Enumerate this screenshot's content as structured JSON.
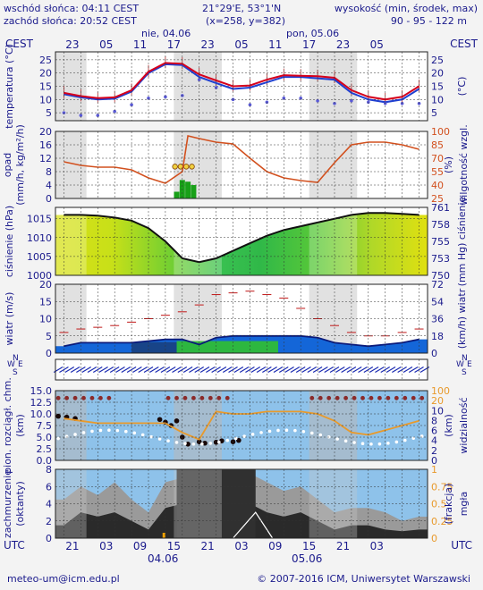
{
  "header": {
    "sunrise": "wschód słońca: 04:11 CEST",
    "sunset": "zachód słońca: 20:52 CEST",
    "coords": "21°29'E, 53°1'N",
    "grid": "(x=258, y=382)",
    "altitude_title": "wysokość (min, środek, max)",
    "altitude_values": "90 - 95 - 122 m"
  },
  "time_axis": {
    "tz_label": "CEST",
    "utc_label": "UTC",
    "top_date_1": "nie, 04.06",
    "top_date_2": "pon, 05.06",
    "top_hours": [
      "23",
      "05",
      "11",
      "17",
      "23",
      "05",
      "11",
      "17",
      "23",
      "05"
    ],
    "bottom_hours": [
      "21",
      "03",
      "09",
      "15",
      "21",
      "03",
      "09",
      "15",
      "21",
      "03"
    ],
    "bottom_date_1": "04.06",
    "bottom_date_2": "05.06"
  },
  "footer": {
    "email": "meteo-um@icm.edu.pl",
    "copyright": "© 2007-2016 ICM, Uniwersytet Warszawski"
  },
  "colors": {
    "panel_bg": "#ffffff",
    "night_band": "#dcdcdc",
    "axis_text": "#1a1a8c",
    "temp_line": "#d6001c",
    "temp_min_line": "#1f3fd0",
    "dew_point": "#5a5ad8",
    "precip_bar": "#18a018",
    "humidity": "#d2501e",
    "pressure_line": "#111111",
    "wind_speed_fill": "#1466d8",
    "wind_gust": "#c01818",
    "visibility": "#e89a2c",
    "cloud_fill": "#2a2a2a",
    "fog_line": "#ffffff"
  },
  "chart_data": [
    {
      "type": "line",
      "name": "temperature",
      "ylabel_left": "temperatura (°C)",
      "ylabel_right": "(°C)",
      "ylim": [
        2,
        28
      ],
      "ticks": [
        5,
        10,
        15,
        20,
        25
      ],
      "x_hours": [
        0,
        3,
        6,
        9,
        12,
        15,
        18,
        21,
        24,
        27,
        30,
        33,
        36,
        39,
        42,
        45,
        48,
        51,
        54,
        57,
        60,
        63
      ],
      "series": [
        {
          "name": "temperature",
          "values": [
            12.5,
            11.3,
            10.5,
            10.8,
            13.5,
            20.5,
            23.8,
            23.5,
            19.5,
            17.2,
            15.0,
            15.3,
            17.5,
            19.2,
            19.0,
            18.8,
            18.2,
            13.5,
            11.0,
            10.0,
            11.0,
            15.0
          ]
        },
        {
          "name": "temperature_min",
          "values": [
            12.0,
            10.8,
            10.0,
            10.3,
            13.0,
            20.0,
            23.3,
            23.0,
            18.5,
            16.2,
            14.0,
            14.5,
            16.5,
            18.5,
            18.5,
            18.0,
            17.5,
            12.5,
            10.0,
            9.0,
            10.0,
            14.0
          ]
        },
        {
          "name": "dew_point",
          "values": [
            5.0,
            4.0,
            4.0,
            5.5,
            8.0,
            10.5,
            11.0,
            11.5,
            17.5,
            14.5,
            10.0,
            8.0,
            9.0,
            10.5,
            10.5,
            9.5,
            8.5,
            9.5,
            9.0,
            8.5,
            8.5,
            8.5
          ]
        }
      ]
    },
    {
      "type": "bar",
      "name": "precipitation_humidity",
      "ylabel_left": "opad (mm/h, kg/m²/h)",
      "ylabel_right": "(%) wilgotność wzgl.",
      "ylim_left": [
        0,
        20
      ],
      "ticks_left": [
        0,
        4,
        8,
        12,
        16,
        20
      ],
      "ticks_right": [
        25,
        40,
        55,
        70,
        85,
        100
      ],
      "precip_hours": [
        20,
        21,
        22,
        23
      ],
      "precip_values": [
        2.0,
        5.5,
        5.0,
        4.0
      ],
      "humidity_hours": [
        0,
        3,
        6,
        9,
        12,
        15,
        18,
        21,
        22,
        24,
        27,
        30,
        33,
        36,
        39,
        42,
        45,
        48,
        51,
        54,
        57,
        60,
        63
      ],
      "humidity_values": [
        66,
        62,
        60,
        60,
        57,
        48,
        42,
        55,
        95,
        92,
        88,
        86,
        70,
        55,
        48,
        45,
        43,
        65,
        85,
        88,
        88,
        85,
        80
      ]
    },
    {
      "type": "area",
      "name": "pressure",
      "ylabel_left": "ciśnienie (hPa)",
      "ylabel_right": "(mm Hg) ciśnienie",
      "ylim": [
        1000,
        1018
      ],
      "ticks_left": [
        1000,
        1005,
        1010,
        1015
      ],
      "ticks_right": [
        750,
        753,
        755,
        758,
        761
      ],
      "x_hours": [
        0,
        3,
        6,
        9,
        12,
        15,
        18,
        21,
        24,
        27,
        30,
        33,
        36,
        39,
        42,
        45,
        48,
        51,
        54,
        57,
        60,
        63
      ],
      "values": [
        1016.0,
        1016.0,
        1015.8,
        1015.3,
        1014.5,
        1012.5,
        1009.0,
        1004.5,
        1003.5,
        1004.5,
        1006.5,
        1008.5,
        1010.5,
        1012.0,
        1013.0,
        1014.0,
        1015.0,
        1016.0,
        1016.5,
        1016.5,
        1016.3,
        1016.0
      ]
    },
    {
      "type": "area",
      "name": "wind",
      "ylabel_left": "wiatr (m/s)",
      "ylabel_right": "(km/h) wiatr",
      "ylim": [
        0,
        20
      ],
      "ticks_left": [
        0,
        5,
        10,
        15,
        20
      ],
      "ticks_right": [
        0,
        18,
        36,
        54,
        72
      ],
      "x_hours": [
        0,
        3,
        6,
        9,
        12,
        15,
        18,
        21,
        24,
        27,
        30,
        33,
        36,
        39,
        42,
        45,
        48,
        51,
        54,
        57,
        60,
        63
      ],
      "speed": [
        2.0,
        3.0,
        3.0,
        3.0,
        3.0,
        3.5,
        4.0,
        4.0,
        2.5,
        4.5,
        5.0,
        5.0,
        5.0,
        5.0,
        5.0,
        4.5,
        3.0,
        2.5,
        2.0,
        2.5,
        3.0,
        4.0
      ],
      "gust": [
        6.0,
        7.0,
        7.5,
        8.0,
        9.0,
        10.0,
        11.0,
        12.0,
        14.0,
        17.0,
        17.5,
        18.0,
        17.0,
        16.0,
        13.0,
        10.0,
        8.0,
        6.0,
        5.0,
        5.0,
        6.0,
        7.0
      ]
    },
    {
      "type": "scatter",
      "name": "visibility_cloudbase",
      "ylabel_left": "pion. rozciągł. chm. (km)",
      "ylabel_right": "(km) widzialność",
      "ylim_left": [
        0,
        15
      ],
      "ticks_left": [
        0.0,
        2.5,
        5.0,
        7.5,
        10.0,
        12.5,
        15.0
      ],
      "ticks_right": [
        0,
        2,
        4,
        6,
        8,
        10,
        20,
        100
      ],
      "x_hours": [
        0,
        3,
        6,
        9,
        12,
        15,
        18,
        21,
        24,
        27,
        30,
        33,
        36,
        39,
        42,
        45,
        48,
        51,
        54,
        57,
        60,
        63
      ],
      "visibility_line": [
        9.0,
        8.5,
        8.0,
        8.0,
        8.0,
        8.0,
        8.0,
        6.0,
        4.5,
        10.5,
        10.0,
        10.0,
        10.5,
        10.5,
        10.5,
        10.0,
        8.5,
        6.0,
        5.5,
        6.5,
        7.5,
        8.5
      ]
    },
    {
      "type": "area",
      "name": "clouds_fog",
      "ylabel_left": "zachmurzenie (oktanty)",
      "ylabel_right": "(frakcja) mgła",
      "ylim": [
        0,
        8
      ],
      "ticks_left": [
        0,
        2,
        4,
        6,
        8
      ],
      "ticks_right": [
        "0",
        "0.25",
        "0.5",
        "0.75",
        "1"
      ],
      "x_hours": [
        0,
        3,
        6,
        9,
        12,
        15,
        18,
        21,
        24,
        27,
        30,
        33,
        36,
        39,
        42,
        45,
        48,
        51,
        54,
        57,
        60,
        63
      ],
      "total": [
        4.5,
        6.0,
        5.0,
        6.5,
        4.5,
        3.0,
        6.5,
        7.0,
        8.0,
        8.0,
        8.0,
        7.5,
        6.5,
        5.5,
        6.0,
        4.5,
        3.0,
        3.5,
        3.5,
        3.0,
        2.0,
        2.5
      ],
      "low": [
        1.5,
        3.0,
        2.5,
        3.0,
        2.0,
        1.0,
        3.5,
        4.0,
        5.5,
        6.0,
        5.0,
        4.0,
        3.0,
        2.5,
        3.0,
        2.0,
        1.0,
        1.5,
        1.5,
        1.0,
        0.8,
        1.0
      ]
    }
  ]
}
